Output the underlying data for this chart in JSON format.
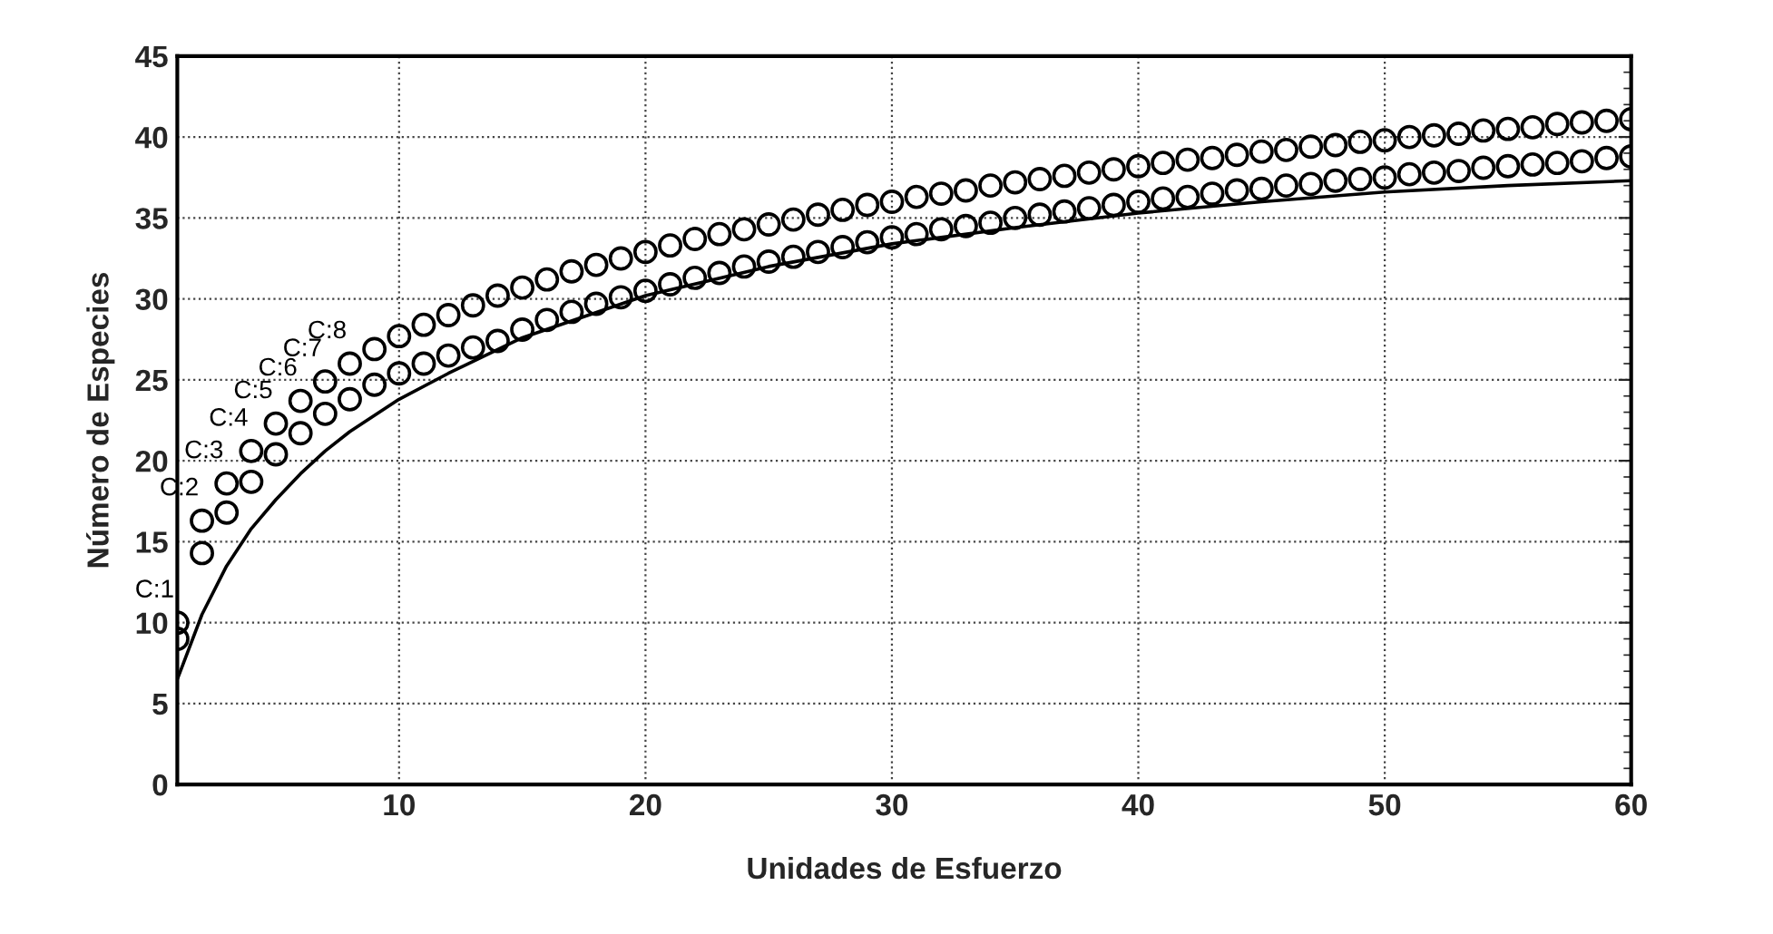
{
  "chart_data": {
    "type": "scatter",
    "xlabel": "Unidades de Esfuerzo",
    "ylabel": "Número de Especies",
    "xlim": [
      1,
      60
    ],
    "xticks": [
      10,
      20,
      30,
      40,
      50,
      60
    ],
    "ylim": [
      0,
      45
    ],
    "yticks": [
      0,
      5,
      10,
      15,
      20,
      25,
      30,
      35,
      40,
      45
    ],
    "grid": true,
    "marker": "circle",
    "annotations": [
      {
        "text": "C:1",
        "x": 1,
        "y": 10.0
      },
      {
        "text": "C:2",
        "x": 2,
        "y": 16.3
      },
      {
        "text": "C:3",
        "x": 3,
        "y": 18.6
      },
      {
        "text": "C:4",
        "x": 4,
        "y": 20.6
      },
      {
        "text": "C:5",
        "x": 5,
        "y": 22.3
      },
      {
        "text": "C:6",
        "x": 6,
        "y": 23.7
      },
      {
        "text": "C:7",
        "x": 7,
        "y": 24.9
      },
      {
        "text": "C:8",
        "x": 8,
        "y": 26.0
      }
    ],
    "x": [
      1,
      2,
      3,
      4,
      5,
      6,
      7,
      8,
      9,
      10,
      11,
      12,
      13,
      14,
      15,
      16,
      17,
      18,
      19,
      20,
      21,
      22,
      23,
      24,
      25,
      26,
      27,
      28,
      29,
      30,
      31,
      32,
      33,
      34,
      35,
      36,
      37,
      38,
      39,
      40,
      41,
      42,
      43,
      44,
      45,
      46,
      47,
      48,
      49,
      50,
      51,
      52,
      53,
      54,
      55,
      56,
      57,
      58,
      59,
      60
    ],
    "series": [
      {
        "color": "#000000",
        "values": [
          10.0,
          16.3,
          18.6,
          20.6,
          22.3,
          23.7,
          24.9,
          26.0,
          26.9,
          27.7,
          28.4,
          29.0,
          29.6,
          30.2,
          30.7,
          31.2,
          31.7,
          32.1,
          32.5,
          32.9,
          33.3,
          33.7,
          34.0,
          34.3,
          34.6,
          34.9,
          35.2,
          35.5,
          35.8,
          36.0,
          36.3,
          36.5,
          36.7,
          37.0,
          37.2,
          37.4,
          37.6,
          37.8,
          38.0,
          38.2,
          38.4,
          38.6,
          38.7,
          38.9,
          39.1,
          39.2,
          39.4,
          39.5,
          39.7,
          39.8,
          40.0,
          40.1,
          40.2,
          40.4,
          40.5,
          40.6,
          40.8,
          40.9,
          41.0,
          41.1
        ],
        "name": null
      },
      {
        "color": "#000000",
        "values": [
          9.0,
          14.3,
          16.8,
          18.7,
          20.4,
          21.7,
          22.9,
          23.8,
          24.7,
          25.4,
          26.0,
          26.5,
          27.0,
          27.4,
          28.1,
          28.7,
          29.2,
          29.7,
          30.1,
          30.5,
          30.9,
          31.3,
          31.6,
          32.0,
          32.3,
          32.6,
          32.9,
          33.2,
          33.5,
          33.8,
          34.0,
          34.3,
          34.5,
          34.7,
          35.0,
          35.2,
          35.4,
          35.6,
          35.8,
          36.0,
          36.2,
          36.3,
          36.5,
          36.7,
          36.8,
          37.0,
          37.1,
          37.3,
          37.4,
          37.5,
          37.7,
          37.8,
          37.9,
          38.1,
          38.2,
          38.3,
          38.4,
          38.5,
          38.7,
          38.8
        ]
      },
      {
        "type": "line",
        "color": "#000000",
        "marker": "none",
        "line_style": "solid",
        "x": [
          1,
          2,
          3,
          4,
          5,
          6,
          7,
          8,
          10,
          12,
          15,
          20,
          25,
          30,
          35,
          40,
          45,
          50,
          55,
          60
        ],
        "values": [
          6.5,
          10.5,
          13.5,
          15.8,
          17.6,
          19.2,
          20.6,
          21.8,
          23.8,
          25.4,
          27.6,
          30.2,
          32.0,
          33.4,
          34.4,
          35.3,
          36.0,
          36.6,
          37.0,
          37.3
        ]
      }
    ]
  }
}
